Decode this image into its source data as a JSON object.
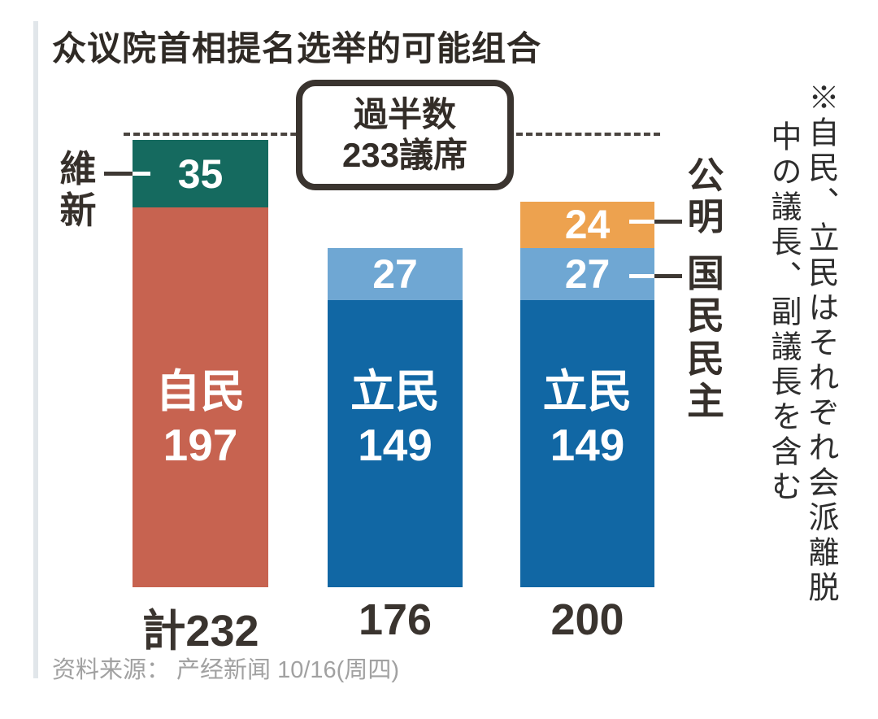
{
  "page": {
    "title": "众议院首相提名选举的可能组合",
    "source": "资料来源： 产经新闻 10/16(周四)"
  },
  "callout": {
    "line1": "過半数",
    "line2": "233議席"
  },
  "side_labels": {
    "ishin": "維新",
    "komei": "公明",
    "kokumin": "国民民主"
  },
  "note": {
    "column1": "※自民、立民はそれぞれ会派離脱",
    "column2": "中の議長、副議長を含む"
  },
  "chart_data": {
    "type": "bar",
    "stacked": true,
    "title": "众议院首相提名选举的可能组合",
    "unit": "議席",
    "majority": {
      "seats": 233,
      "label": "過半数233議席"
    },
    "ylim": [
      0,
      240
    ],
    "categories": [
      "自民+維新",
      "立民+国民民主",
      "立民+国民民主+公明"
    ],
    "totals": [
      232,
      176,
      200
    ],
    "bars": [
      {
        "x": 163,
        "width": 167,
        "total": 232,
        "total_label": "計232",
        "segments": [
          {
            "party": "維新",
            "seats": 35,
            "color": "#156a5f",
            "value_label": "35"
          },
          {
            "party": "自民",
            "seats": 197,
            "color": "#c76350",
            "lines": [
              "自民",
              "197"
            ]
          }
        ]
      },
      {
        "x": 403,
        "width": 166,
        "total": 176,
        "total_label": "176",
        "segments": [
          {
            "party": "国民民主",
            "seats": 27,
            "color": "#6fa7d3",
            "value_label": "27"
          },
          {
            "party": "立民",
            "seats": 149,
            "color": "#1167a4",
            "lines": [
              "立民",
              "149"
            ]
          }
        ]
      },
      {
        "x": 640,
        "width": 165,
        "total": 200,
        "total_label": "200",
        "segments": [
          {
            "party": "公明",
            "seats": 24,
            "color": "#eda24f",
            "value_label": "24"
          },
          {
            "party": "国民民主",
            "seats": 27,
            "color": "#6fa7d3",
            "value_label": "27"
          },
          {
            "party": "立民",
            "seats": 149,
            "color": "#1167a4",
            "lines": [
              "立民",
              "149"
            ]
          }
        ]
      }
    ]
  }
}
